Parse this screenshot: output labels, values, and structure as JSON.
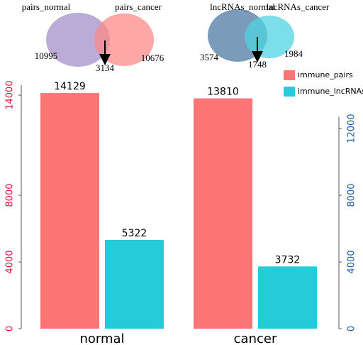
{
  "chart_data": {
    "type": "bar",
    "categories": [
      "normal",
      "cancer"
    ],
    "series": [
      {
        "name": "immune_pairs",
        "color": "#fe7575",
        "values": [
          14129,
          13810
        ]
      },
      {
        "name": "immune_lncRNAs",
        "color": "#26cbd9",
        "axis": "y2",
        "values": [
          5322,
          3732
        ]
      }
    ],
    "ylim": [
      0,
      14600
    ],
    "yticks": [
      0,
      4000,
      8000,
      14000
    ],
    "ytick_color": "#e0103c",
    "y2lim": [
      0,
      12700
    ],
    "y2ticks": [
      0,
      4000,
      8000,
      12000
    ],
    "y2tick_color": "#1a5aa0",
    "legend": "top-right",
    "venns": [
      {
        "sets": [
          "pairs_normal",
          "pairs_cancer"
        ],
        "colors": [
          "#a38fca",
          "#fc8a8a"
        ],
        "counts": [
          10995,
          3134,
          10676
        ]
      },
      {
        "sets": [
          "lncRNAs_normal",
          "lncRNAs_cancer"
        ],
        "colors": [
          "#4f7aa3",
          "#4fd3e0"
        ],
        "counts": [
          3574,
          1748,
          1984
        ]
      }
    ]
  }
}
